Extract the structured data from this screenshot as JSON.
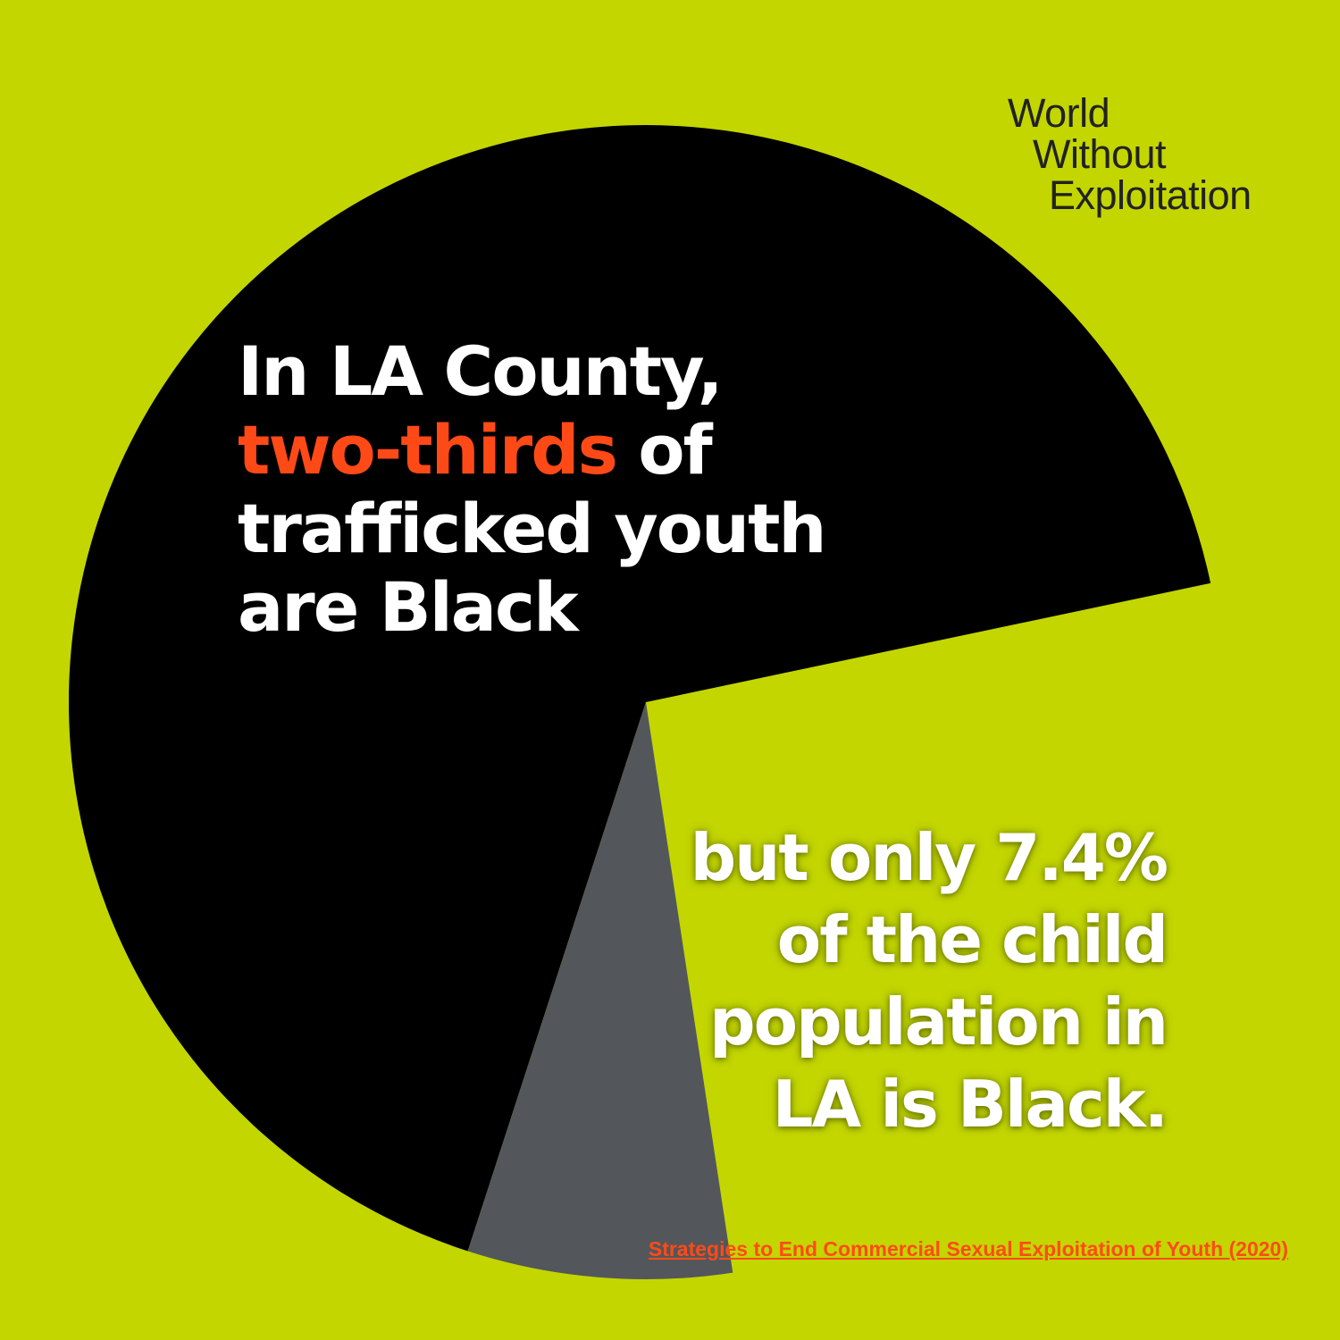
{
  "logo": {
    "line1": "World",
    "line2": "Without",
    "line3": "Exploitation"
  },
  "headline": {
    "line1": "In LA County,",
    "highlight": "two-thirds",
    "line2_rest": " of",
    "line3": "trafficked youth",
    "line4": "are Black"
  },
  "subline": {
    "line1": "but only 7.4%",
    "line2": "of the child",
    "line3": "population in",
    "line4": "LA is Black."
  },
  "source": {
    "text": "Strategies to End Commercial Sexual Exploitation of Youth (2020)"
  },
  "colors": {
    "background": "#c3d600",
    "main_slice": "#000000",
    "small_slice": "#53575b",
    "highlight": "#ff4a17"
  },
  "chart_data": {
    "type": "pie",
    "slices": [
      {
        "value": 66.7,
        "color": "#000000"
      },
      {
        "value": 7.4,
        "color": "#53575b"
      }
    ],
    "remainder_shown": false
  }
}
